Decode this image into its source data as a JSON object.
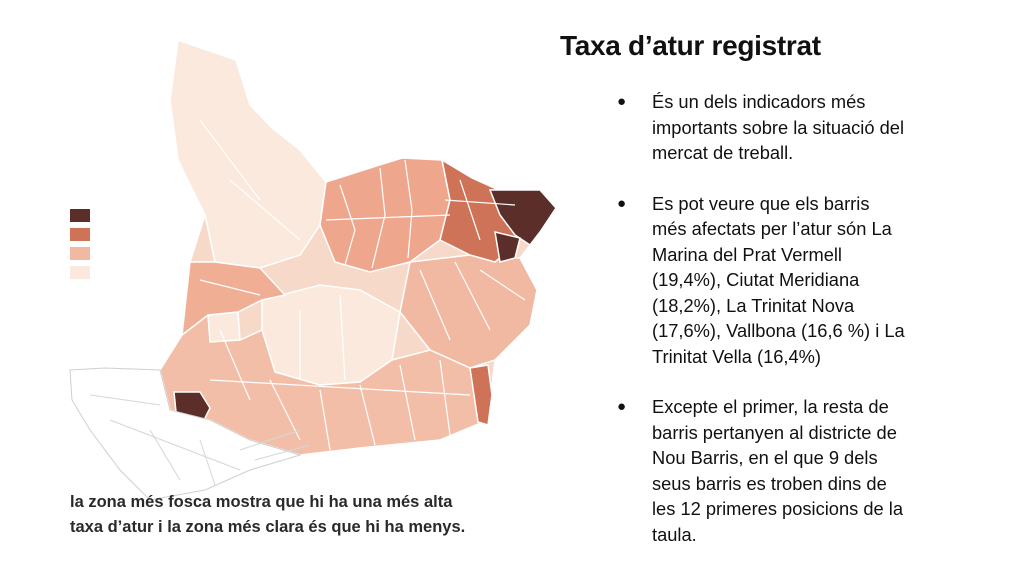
{
  "title": "Taxa d’atur registrat",
  "bullets": [
    {
      "lines": [
        "És un dels indicadors més",
        "importants sobre la situació del",
        "mercat de treball."
      ]
    },
    {
      "lines": [
        "Es pot veure que els barris",
        "més afectats per l’atur són La",
        "Marina del Prat Vermell",
        "(19,4%), Ciutat Meridiana",
        "(18,2%), La Trinitat Nova",
        "(17,6%), Vallbona (16,6 %) i La",
        "Trinitat Vella (16,4%)"
      ]
    },
    {
      "lines": [
        "Excepte el primer, la resta de",
        "barris pertanyen al districte de",
        "Nou Barris, en el que 9 dels",
        "seus barris es troben dins de",
        "les 12 primeres posicions de la",
        "taula."
      ]
    }
  ],
  "caption": {
    "line1": "la zona més fosca mostra que hi ha una més alta",
    "line2": "taxa d’atur i la zona més clara és que hi ha menys."
  },
  "map": {
    "legend_colors": [
      "#5c2e2a",
      "#cf7358",
      "#f2b9a2",
      "#fbe9dd"
    ],
    "palette": {
      "very_high": "#5c2e2a",
      "high": "#cf7358",
      "mid": "#f2b9a2",
      "low": "#fbe9dd",
      "port": "#ffffff"
    }
  }
}
